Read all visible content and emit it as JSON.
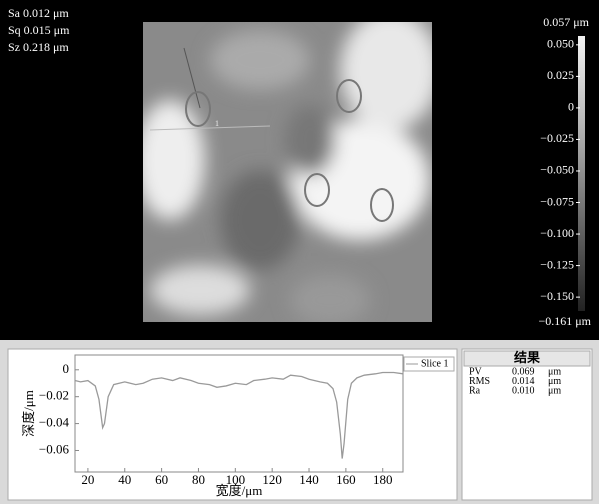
{
  "header": {
    "stats": [
      "Sa 0.012 μm",
      "Sq 0.015 μm",
      "Sz 0.218 μm"
    ],
    "marker_label": "1"
  },
  "colorbar": {
    "max": {
      "value": 0.057,
      "label": "0.057 μm"
    },
    "min": {
      "value": -0.161,
      "label": "−0.161 μm"
    },
    "ticks": [
      {
        "value": 0.05,
        "label": "0.050"
      },
      {
        "value": 0.025,
        "label": "0.025"
      },
      0,
      {
        "value": -0.025,
        "label": "−0.025"
      },
      {
        "value": -0.05,
        "label": "−0.050"
      },
      {
        "value": -0.075,
        "label": "−0.075"
      },
      {
        "value": -0.1,
        "label": "−0.100"
      },
      {
        "value": -0.125,
        "label": "−0.125"
      },
      {
        "value": -0.15,
        "label": "−0.150"
      }
    ]
  },
  "chart_data": {
    "type": "line",
    "x_label": "宽度/μm",
    "y_label": "深度/μm",
    "x": [
      13,
      16,
      20,
      24,
      26,
      28,
      29,
      31,
      34,
      40,
      46,
      50,
      55,
      60,
      66,
      70,
      76,
      80,
      86,
      90,
      95,
      100,
      106,
      110,
      116,
      120,
      126,
      130,
      136,
      140,
      146,
      150,
      153,
      155,
      157,
      158,
      159,
      161,
      163,
      166,
      170,
      176,
      180,
      186,
      191
    ],
    "series": [
      {
        "name": "Slice 1",
        "color": "#9a9a9a",
        "values": [
          -0.008,
          -0.009,
          -0.008,
          -0.012,
          -0.022,
          -0.043,
          -0.04,
          -0.02,
          -0.011,
          -0.009,
          -0.011,
          -0.01,
          -0.007,
          -0.006,
          -0.008,
          -0.006,
          -0.008,
          -0.01,
          -0.011,
          -0.013,
          -0.012,
          -0.01,
          -0.011,
          -0.008,
          -0.007,
          -0.006,
          -0.007,
          -0.004,
          -0.005,
          -0.007,
          -0.009,
          -0.01,
          -0.014,
          -0.024,
          -0.048,
          -0.066,
          -0.055,
          -0.022,
          -0.01,
          -0.006,
          -0.004,
          -0.003,
          -0.002,
          -0.002,
          -0.003
        ]
      }
    ],
    "xlim": [
      13,
      191
    ],
    "ylim": [
      -0.076,
      0.011
    ],
    "xticks": [
      20,
      40,
      60,
      80,
      100,
      120,
      140,
      160,
      180
    ],
    "yticks": [
      0,
      {
        "value": -0.02,
        "label": "−0.02"
      },
      {
        "value": -0.04,
        "label": "−0.04"
      },
      {
        "value": -0.06,
        "label": "−0.06"
      }
    ]
  },
  "results": {
    "title": "结果",
    "rows": [
      [
        "PV",
        "0.069",
        "μm"
      ],
      [
        "RMS",
        "0.014",
        "μm"
      ],
      [
        "Ra",
        "0.010",
        "μm"
      ]
    ]
  }
}
